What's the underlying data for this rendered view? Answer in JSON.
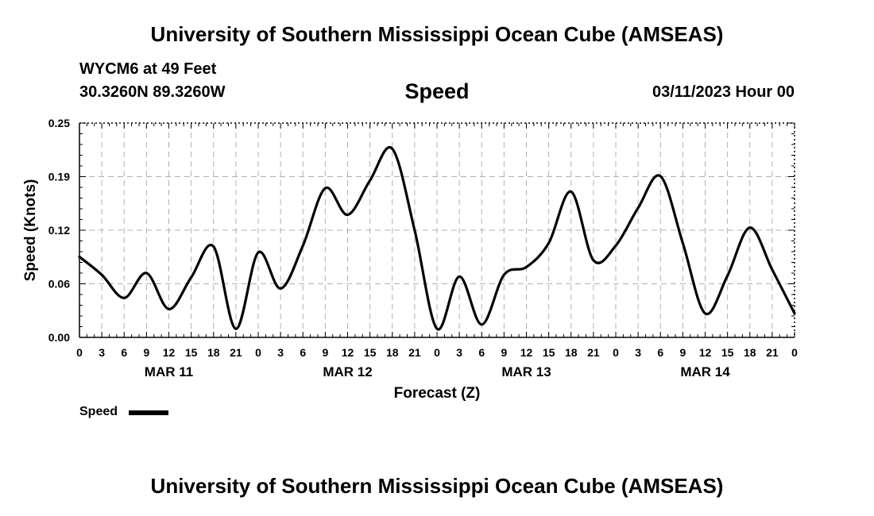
{
  "header": {
    "title": "University of Southern Mississippi Ocean Cube (AMSEAS)",
    "station": "WYCM6 at 49 Feet",
    "coordinates": "30.3260N  89.3260W",
    "variable": "Speed",
    "datetime": "03/11/2023 Hour 00"
  },
  "footer": {
    "title": "University of Southern Mississippi Ocean Cube (AMSEAS)"
  },
  "legend": {
    "label": "Speed",
    "color": "#000000"
  },
  "chart_data": {
    "type": "line",
    "title": "Speed",
    "xlabel": "Forecast (Z)",
    "ylabel": "Speed (Knots)",
    "xlim": [
      0,
      96
    ],
    "ylim": [
      0,
      0.25
    ],
    "grid": true,
    "y_ticks": [
      "0.00",
      "0.06",
      "0.12",
      "0.19",
      "0.25"
    ],
    "y_tick_values": [
      0,
      0.0625,
      0.125,
      0.1875,
      0.25
    ],
    "x_tick_labels": [
      "0",
      "3",
      "6",
      "9",
      "12",
      "15",
      "18",
      "21",
      "0",
      "3",
      "6",
      "9",
      "12",
      "15",
      "18",
      "21",
      "0",
      "3",
      "6",
      "9",
      "12",
      "15",
      "18",
      "21",
      "0",
      "3",
      "6",
      "9",
      "12",
      "15",
      "18",
      "21",
      "0"
    ],
    "date_labels": [
      {
        "label": "MAR 11",
        "hour": 12
      },
      {
        "label": "MAR 12",
        "hour": 36
      },
      {
        "label": "MAR 13",
        "hour": 60
      },
      {
        "label": "MAR 14",
        "hour": 84
      }
    ],
    "series": [
      {
        "name": "Speed",
        "color": "#000000",
        "x": [
          0,
          3,
          6,
          9,
          12,
          15,
          18,
          21,
          24,
          27,
          30,
          33,
          36,
          39,
          42,
          45,
          48,
          51,
          54,
          57,
          60,
          63,
          66,
          69,
          72,
          75,
          78,
          81,
          84,
          87,
          90,
          93,
          96
        ],
        "values": [
          0.094,
          0.073,
          0.046,
          0.075,
          0.033,
          0.07,
          0.106,
          0.01,
          0.099,
          0.057,
          0.107,
          0.174,
          0.143,
          0.183,
          0.22,
          0.125,
          0.01,
          0.071,
          0.015,
          0.073,
          0.082,
          0.11,
          0.17,
          0.09,
          0.107,
          0.151,
          0.188,
          0.11,
          0.028,
          0.072,
          0.128,
          0.079,
          0.028
        ]
      }
    ]
  }
}
